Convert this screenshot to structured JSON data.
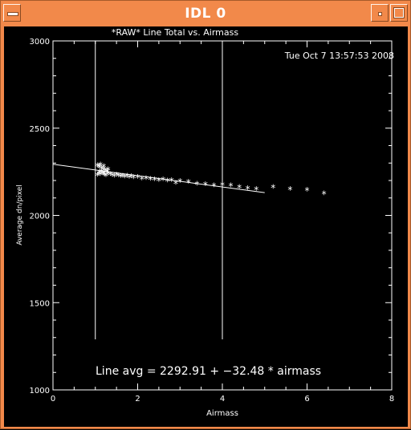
{
  "window": {
    "title": "IDL 0"
  },
  "plot": {
    "title": "*RAW* Line Total vs. Airmass",
    "timestamp": "Tue Oct  7 13:57:53 2008",
    "xlabel": "Airmass",
    "ylabel": "Average dn/pixel",
    "annotation": "Line avg = 2292.91 + −32.48 * airmass"
  },
  "chart_data": {
    "type": "scatter",
    "title": "*RAW* Line Total vs. Airmass",
    "xlabel": "Airmass",
    "ylabel": "Average dn/pixel",
    "xlim": [
      0,
      8
    ],
    "ylim": [
      1000,
      3000
    ],
    "xticks": [
      0,
      2,
      4,
      6,
      8
    ],
    "yticks": [
      1000,
      1500,
      2000,
      2500,
      3000
    ],
    "vlines": [
      1,
      4
    ],
    "fit": {
      "intercept": 2292.91,
      "slope": -32.48,
      "x_range": [
        0,
        5
      ]
    },
    "points": {
      "x": [
        1.05,
        1.08,
        1.1,
        1.12,
        1.15,
        1.18,
        1.2,
        1.22,
        1.25,
        1.28,
        1.3,
        1.05,
        1.08,
        1.1,
        1.12,
        1.15,
        1.18,
        1.2,
        1.22,
        1.25,
        1.3,
        1.35,
        1.4,
        1.45,
        1.5,
        1.55,
        1.6,
        1.65,
        1.7,
        1.75,
        1.8,
        1.85,
        1.9,
        2.0,
        2.1,
        2.2,
        2.3,
        2.4,
        2.5,
        2.6,
        2.7,
        2.8,
        2.9,
        3.0,
        3.2,
        3.4,
        3.6,
        3.8,
        4.0,
        4.2,
        4.4,
        4.6,
        4.8,
        5.2,
        5.6,
        6.0,
        6.4
      ],
      "y": [
        2285,
        2280,
        2275,
        2290,
        2270,
        2265,
        2280,
        2260,
        2255,
        2250,
        2262,
        2230,
        2240,
        2245,
        2235,
        2250,
        2242,
        2238,
        2232,
        2228,
        2240,
        2235,
        2230,
        2225,
        2232,
        2228,
        2222,
        2226,
        2220,
        2225,
        2218,
        2222,
        2215,
        2218,
        2210,
        2212,
        2208,
        2205,
        2200,
        2205,
        2198,
        2200,
        2185,
        2195,
        2190,
        2180,
        2178,
        2170,
        2175,
        2170,
        2160,
        2155,
        2150,
        2160,
        2150,
        2145,
        2125
      ]
    }
  }
}
